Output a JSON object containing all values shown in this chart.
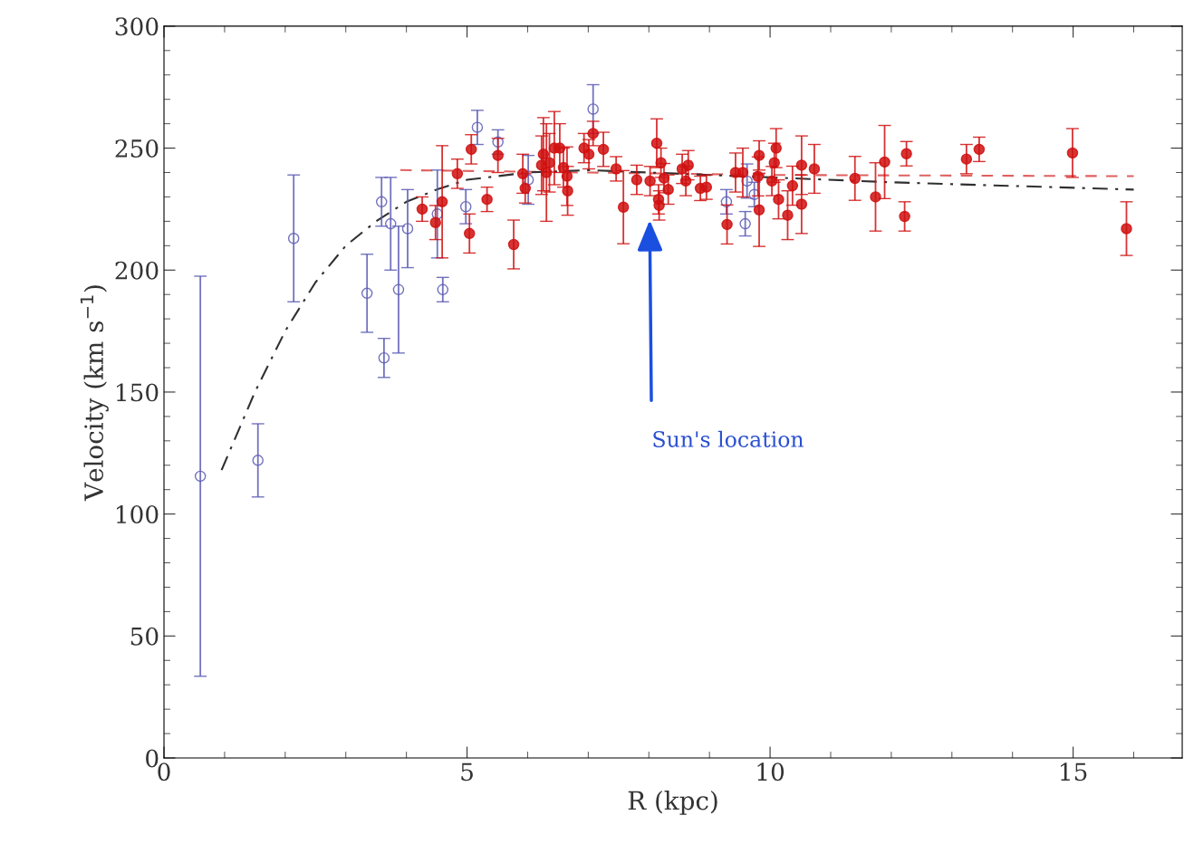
{
  "chart_data": {
    "type": "scatter",
    "xlabel": "R (kpc)",
    "ylabel": "Velocity (km s$^{−1}$)",
    "xlim": [
      0,
      16.8
    ],
    "ylim": [
      0,
      300
    ],
    "xticks": [
      0,
      5,
      10,
      15
    ],
    "yticks": [
      0,
      50,
      100,
      150,
      200,
      250,
      300
    ],
    "grid": false,
    "legend": false,
    "marker": "circle",
    "series": [
      {
        "color": "#5a5ab4",
        "x": [
          0.6,
          1.55,
          2.14,
          3.35,
          3.59,
          3.63,
          3.74,
          3.87,
          4.02,
          4.51,
          4.6,
          4.98,
          5.17,
          5.51,
          6.01,
          7.08,
          9.28,
          9.59,
          9.62,
          9.74
        ],
        "values": [
          115.5,
          122,
          213,
          190.5,
          228,
          164,
          219,
          192,
          217,
          223,
          192,
          226,
          258.5,
          252.5,
          237,
          266,
          228,
          219,
          236.5,
          231
        ],
        "errors": [
          82,
          15,
          26,
          16,
          10,
          8,
          19,
          26,
          16,
          18,
          5,
          7,
          7,
          5,
          10,
          10,
          5,
          5,
          7,
          5
        ]
      },
      {
        "color": "#d01010",
        "x": [
          4.26,
          4.48,
          4.59,
          4.84,
          5.04,
          5.07,
          5.33,
          5.51,
          5.77,
          5.92,
          5.96,
          6.23,
          6.26,
          6.31,
          6.36,
          6.44,
          6.53,
          6.59,
          6.65,
          6.66,
          6.93,
          7.01,
          7.08,
          7.25,
          7.46,
          7.58,
          7.8,
          8.02,
          8.13,
          8.16,
          8.17,
          8.2,
          8.25,
          8.32,
          8.55,
          8.61,
          8.65,
          8.85,
          8.95,
          9.29,
          9.43,
          9.55,
          9.8,
          9.82,
          9.82,
          10.03,
          10.07,
          10.1,
          10.14,
          10.29,
          10.37,
          10.52,
          10.52,
          10.73,
          11.4,
          11.74,
          11.89,
          12.22,
          12.25,
          13.24,
          13.45,
          14.99,
          15.88
        ],
        "values": [
          225,
          219.5,
          228,
          239.5,
          215,
          249.5,
          229,
          247,
          210.5,
          239.5,
          233.5,
          243,
          247.5,
          240,
          244,
          250,
          250,
          242,
          238.5,
          232.5,
          250,
          247.5,
          256,
          249.5,
          241.5,
          225.8,
          237,
          236.5,
          252,
          229,
          226.5,
          244,
          237.7,
          233,
          241.5,
          236.5,
          243,
          233.5,
          234,
          218.7,
          240,
          240,
          238.4,
          247,
          224.7,
          236.5,
          244,
          250,
          229,
          222.5,
          234.6,
          243,
          227,
          241.5,
          237.6,
          230,
          244.3,
          222,
          247.7,
          245.5,
          249.5,
          248,
          217
        ],
        "errors": [
          5,
          7,
          23,
          6,
          8,
          6,
          5,
          7,
          10,
          8,
          6,
          12,
          15,
          20,
          12,
          15,
          10,
          8,
          12,
          10,
          6,
          6,
          5,
          7,
          5,
          15,
          6,
          6,
          10,
          6,
          6,
          6,
          6,
          6,
          6,
          6,
          6,
          5,
          5,
          8,
          8,
          10,
          8,
          6,
          15,
          6,
          8,
          8,
          8,
          10,
          8,
          12,
          12,
          10,
          9,
          14,
          15,
          6,
          5,
          6,
          5,
          10,
          11
        ]
      },
      {
        "type": "line",
        "color": "#e06060",
        "line_style": "dashed",
        "marker": "none",
        "x": [
          3.9,
          7,
          10,
          16
        ],
        "values": [
          241,
          240,
          239,
          238.5
        ]
      },
      {
        "type": "line",
        "color": "#303030",
        "line_style": "dashdot",
        "marker": "none",
        "x": [
          0.95,
          1.5,
          2,
          2.5,
          3,
          3.5,
          4,
          4.5,
          5,
          6,
          7,
          8,
          9,
          10,
          12,
          14,
          16
        ],
        "values": [
          118,
          150,
          175,
          195,
          210,
          220,
          228,
          233,
          237,
          240,
          241,
          240,
          239,
          238,
          236,
          234.5,
          233
        ]
      }
    ],
    "annotations": [
      "Sun's location"
    ]
  }
}
